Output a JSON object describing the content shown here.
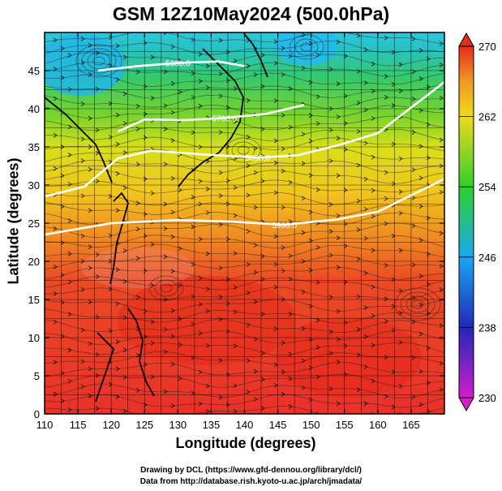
{
  "title": "GSM 12Z10May2024 (500.0hPa)",
  "x_axis": {
    "label": "Longitude (degrees)",
    "min": 110,
    "max": 170,
    "ticks": [
      "110",
      "115",
      "120",
      "125",
      "130",
      "135",
      "140",
      "145",
      "150",
      "155",
      "160",
      "165"
    ]
  },
  "y_axis": {
    "label": "Latitude (degrees)",
    "min": 0,
    "max": 50,
    "ticks": [
      "0",
      "5",
      "10",
      "15",
      "20",
      "25",
      "30",
      "35",
      "40",
      "45"
    ]
  },
  "colorbar": {
    "min": 230,
    "max": 270,
    "ticks": [
      "230",
      "238",
      "246",
      "254",
      "262",
      "270"
    ],
    "colors": [
      "#d21ecb",
      "#2128b8",
      "#1aa8f0",
      "#2ed12a",
      "#f1d81d",
      "#f09a24",
      "#e62c1e"
    ]
  },
  "contours": [
    {
      "label": "5900.0",
      "lat_points": [
        [
          110,
          23.5
        ],
        [
          120,
          25
        ],
        [
          130,
          25.4
        ],
        [
          138,
          25.2
        ],
        [
          146,
          24.8
        ],
        [
          154,
          25.5
        ],
        [
          160,
          26.5
        ],
        [
          170,
          30.8
        ]
      ]
    },
    {
      "label": "5800.0",
      "lat_points": [
        [
          110,
          28.5
        ],
        [
          116,
          29.8
        ],
        [
          121,
          33.5
        ],
        [
          126,
          34.5
        ],
        [
          134,
          34
        ],
        [
          142,
          33.6
        ],
        [
          148,
          33.9
        ],
        [
          154,
          35.2
        ],
        [
          160,
          36.8
        ],
        [
          170,
          43.5
        ]
      ]
    },
    {
      "label": "5700.0",
      "lat_points": [
        [
          121,
          37
        ],
        [
          125,
          38.6
        ],
        [
          131,
          38.5
        ],
        [
          137,
          38.8
        ],
        [
          143,
          39.3
        ],
        [
          149,
          40.5
        ]
      ]
    },
    {
      "label": "5600.0",
      "lat_points": [
        [
          118,
          45
        ],
        [
          124,
          45.6
        ],
        [
          130,
          46
        ],
        [
          136,
          46.2
        ],
        [
          140,
          45.6
        ]
      ]
    }
  ],
  "credits": [
    "Drawing by DCL (https://www.gfd-dennou.org/library/dcl/)",
    "Data from http://database.rish.kyoto-u.ac.jp/arch/jmadata/"
  ]
}
